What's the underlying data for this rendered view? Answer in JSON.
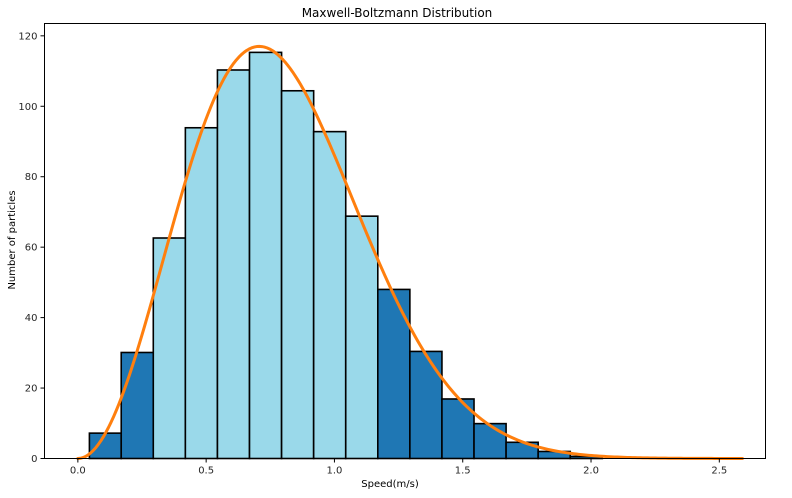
{
  "chart_data": {
    "type": "bar",
    "title": "Maxwell-Boltzmann Distribution",
    "xlabel": "Speed(m/s)",
    "ylabel": "Number of particles",
    "xlim": [
      -0.13,
      2.68
    ],
    "ylim": [
      0,
      123.5
    ],
    "xticks": [
      0.0,
      0.5,
      1.0,
      1.5,
      2.0,
      2.5
    ],
    "xtick_labels": [
      "0.0",
      "0.5",
      "1.0",
      "1.5",
      "2.0",
      "2.5"
    ],
    "yticks": [
      0,
      20,
      40,
      60,
      80,
      100,
      120
    ],
    "ytick_labels": [
      "0",
      "20",
      "40",
      "60",
      "80",
      "100",
      "120"
    ],
    "grid": false,
    "histogram": {
      "bin_edges": [
        0.045,
        0.169,
        0.294,
        0.419,
        0.544,
        0.669,
        0.794,
        0.919,
        1.044,
        1.169,
        1.294,
        1.419,
        1.544,
        1.669,
        1.794,
        1.919,
        2.044
      ],
      "counts": [
        7.2,
        30.1,
        62.6,
        93.9,
        110.3,
        115.3,
        104.4,
        92.8,
        68.8,
        48.0,
        30.4,
        16.9,
        9.9,
        4.6,
        2.0,
        0.6
      ],
      "highlighted": [
        false,
        false,
        true,
        true,
        true,
        true,
        true,
        true,
        true,
        false,
        false,
        false,
        false,
        false,
        false,
        false
      ],
      "colors": {
        "default": "#1f77b4",
        "highlighted": "#9ad9ea",
        "edge": "#000000"
      }
    },
    "fit_curve": {
      "kind": "maxwell-boltzmann",
      "color": "#ff7f0e",
      "peak_x": 0.707,
      "peak_y": 117.0,
      "x_range": [
        0.0,
        2.59
      ]
    }
  }
}
